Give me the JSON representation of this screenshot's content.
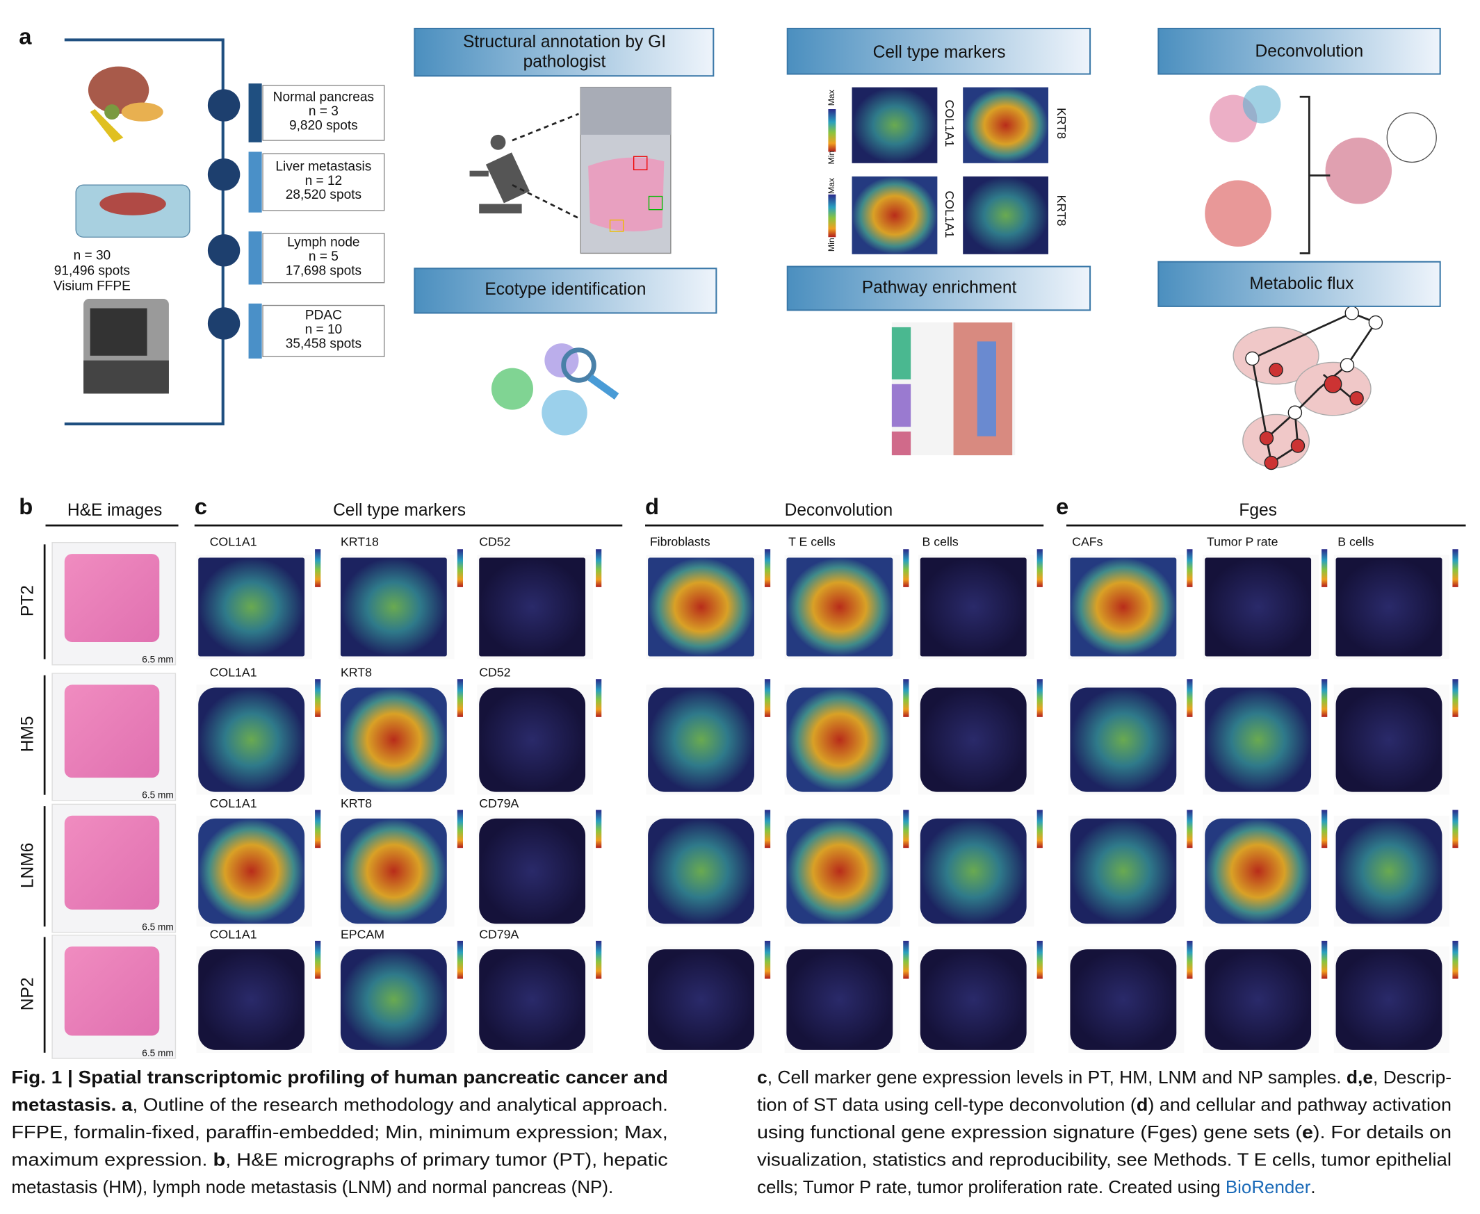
{
  "panel_a": {
    "label": "a",
    "cohort": [
      "n = 30",
      "91,496 spots",
      "Visium FFPE"
    ],
    "samples": [
      {
        "name": "Normal pancreas",
        "n": "n = 3",
        "spots": "9,820 spots"
      },
      {
        "name": "Liver metastasis",
        "n": "n = 12",
        "spots": "28,520 spots"
      },
      {
        "name": "Lymph node",
        "n": "n = 5",
        "spots": "17,698 spots"
      },
      {
        "name": "PDAC",
        "n": "n = 10",
        "spots": "35,458 spots"
      }
    ],
    "structural": [
      "Structural annotation by GI",
      "pathologist"
    ],
    "ecotype": "Ecotype identification",
    "cell_type_markers": "Cell type markers",
    "pathway": "Pathway enrichment",
    "deconvolution": "Deconvolution",
    "metabolic": "Metabolic flux",
    "marker_genes": [
      "COL1A1",
      "KRT8",
      "COL1A1",
      "KRT8"
    ],
    "scale": [
      "Max",
      "Min",
      "Max",
      "Min"
    ]
  },
  "panels": [
    {
      "label": "b",
      "title": "H&E images"
    },
    {
      "label": "c",
      "title": "Cell type markers"
    },
    {
      "label": "d",
      "title": "Deconvolution",
      "columns": [
        "Fibroblasts",
        "T E cells",
        "B cells"
      ]
    },
    {
      "label": "e",
      "title": "Fges",
      "columns": [
        "CAFs",
        "Tumor P rate",
        "B cells"
      ]
    }
  ],
  "samples": [
    {
      "name": "PT2",
      "scale": "6.5 mm",
      "markers": [
        "COL1A1",
        "KRT18",
        "CD52"
      ]
    },
    {
      "name": "HM5",
      "scale": "6.5 mm",
      "markers": [
        "COL1A1",
        "KRT8",
        "CD52"
      ]
    },
    {
      "name": "LNM6",
      "scale": "6.5 mm",
      "markers": [
        "COL1A1",
        "KRT8",
        "CD79A"
      ]
    },
    {
      "name": "NP2",
      "scale": "6.5 mm",
      "markers": [
        "COL1A1",
        "EPCAM",
        "CD79A"
      ]
    }
  ],
  "caption": {
    "left": [
      [
        {
          "t": "Fig. 1 | Spatial transcriptomic profiling of human pancreatic cancer and",
          "b": true
        }
      ],
      [
        {
          "t": "metastasis. a",
          "b": true
        },
        {
          "t": ", Outline of the research methodology and analytical approach."
        }
      ],
      [
        {
          "t": "FFPE, formalin-fixed, paraffin-embedded; Min, minimum expression; Max,"
        }
      ],
      [
        {
          "t": "maximum expression. "
        },
        {
          "t": "b",
          "b": true
        },
        {
          "t": ", H&E micrographs of primary tumor (PT), hepatic"
        }
      ],
      [
        {
          "t": "metastasis (HM), lymph node metastasis (LNM) and normal pancreas (NP)."
        }
      ]
    ],
    "right": [
      [
        {
          "t": "c",
          "b": true
        },
        {
          "t": ", Cell marker gene expression levels in PT, HM, LNM and NP samples. "
        },
        {
          "t": "d,e",
          "b": true
        },
        {
          "t": ", Descrip-"
        }
      ],
      [
        {
          "t": "tion of ST data using cell-type deconvolution ("
        },
        {
          "t": "d",
          "b": true
        },
        {
          "t": ") and cellular and pathway activation"
        }
      ],
      [
        {
          "t": "using functional gene expression signature (Fges) gene sets ("
        },
        {
          "t": "e",
          "b": true
        },
        {
          "t": "). For details on"
        }
      ],
      [
        {
          "t": "visualization, statistics and reproducibility, see Methods. T E cells, tumor epithelial"
        }
      ],
      [
        {
          "t": "cells; Tumor P rate, tumor proliferation rate. Created using "
        },
        {
          "t": "BioRender",
          "link": true
        },
        {
          "t": "."
        }
      ]
    ]
  }
}
